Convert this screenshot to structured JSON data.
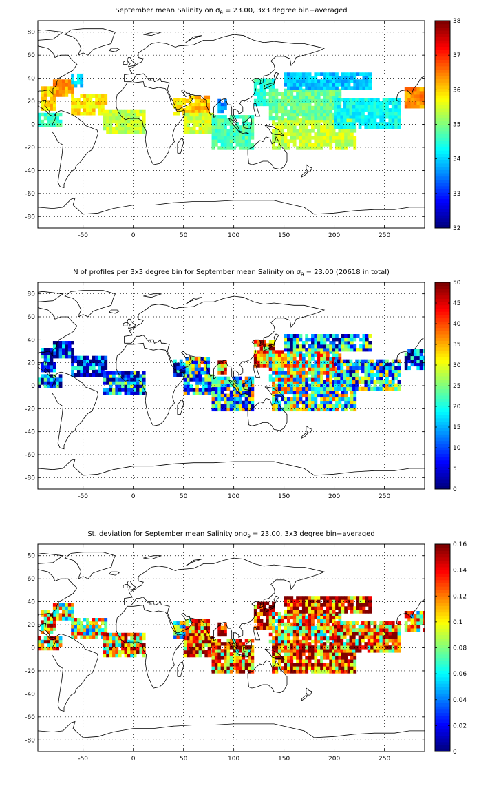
{
  "chart_data": [
    {
      "type": "heatmap",
      "title_parts": [
        "September mean Salinity on σ",
        "θ",
        " = 23.00, 3x3 degree bin−averaged"
      ],
      "xlabel": "",
      "ylabel": "",
      "xlim": [
        -95,
        290
      ],
      "ylim": [
        -90,
        90
      ],
      "xticks": [
        "-50",
        "0",
        "50",
        "100",
        "150",
        "200",
        "250"
      ],
      "yticks": [
        "80",
        "60",
        "40",
        "20",
        "0",
        "-20",
        "-40",
        "-60",
        "-80"
      ],
      "grid": "dotted",
      "colorbar": {
        "min": 32,
        "max": 38,
        "ticks": [
          "38",
          "37",
          "36",
          "35",
          "34",
          "33",
          "32"
        ]
      },
      "regions": [
        {
          "lon": [
            -95,
            -72
          ],
          "lat": [
            -2,
            10
          ],
          "value": 34.6
        },
        {
          "lon": [
            -92,
            -78
          ],
          "lat": [
            12,
            32
          ],
          "value": 36.0
        },
        {
          "lon": [
            -80,
            -60
          ],
          "lat": [
            24,
            38
          ],
          "value": 36.3
        },
        {
          "lon": [
            -62,
            -28
          ],
          "lat": [
            8,
            24
          ],
          "value": 35.9
        },
        {
          "lon": [
            -62,
            -50
          ],
          "lat": [
            32,
            44
          ],
          "value": 34.0
        },
        {
          "lon": [
            -30,
            10
          ],
          "lat": [
            -8,
            12
          ],
          "value": 35.4
        },
        {
          "lon": [
            40,
            52
          ],
          "lat": [
            8,
            22
          ],
          "value": 35.8
        },
        {
          "lon": [
            52,
            76
          ],
          "lat": [
            10,
            24
          ],
          "value": 36.1
        },
        {
          "lon": [
            50,
            78
          ],
          "lat": [
            -8,
            8
          ],
          "value": 35.5
        },
        {
          "lon": [
            78,
            120
          ],
          "lat": [
            -22,
            8
          ],
          "value": 34.7
        },
        {
          "lon": [
            84,
            92
          ],
          "lat": [
            10,
            20
          ],
          "value": 33.6
        },
        {
          "lon": [
            120,
            140
          ],
          "lat": [
            16,
            40
          ],
          "value": 34.5
        },
        {
          "lon": [
            138,
            220
          ],
          "lat": [
            -22,
            4
          ],
          "value": 35.4
        },
        {
          "lon": [
            135,
            205
          ],
          "lat": [
            4,
            30
          ],
          "value": 34.9
        },
        {
          "lon": [
            150,
            235
          ],
          "lat": [
            30,
            44
          ],
          "value": 33.9
        },
        {
          "lon": [
            200,
            265
          ],
          "lat": [
            -4,
            22
          ],
          "value": 34.3
        },
        {
          "lon": [
            270,
            290
          ],
          "lat": [
            14,
            32
          ],
          "value": 36.4
        }
      ]
    },
    {
      "type": "heatmap",
      "title_parts": [
        "N of profiles per 3x3 degree bin for September mean Salinity on σ",
        "θ",
        " = 23.00 (20618 in total)"
      ],
      "xlabel": "",
      "ylabel": "",
      "xlim": [
        -95,
        290
      ],
      "ylim": [
        -90,
        90
      ],
      "xticks": [
        "-50",
        "0",
        "50",
        "100",
        "150",
        "200",
        "250"
      ],
      "yticks": [
        "80",
        "60",
        "40",
        "20",
        "0",
        "-20",
        "-40",
        "-60",
        "-80"
      ],
      "grid": "dotted",
      "colorbar": {
        "min": 0,
        "max": 50,
        "ticks": [
          "50",
          "45",
          "40",
          "35",
          "30",
          "25",
          "20",
          "15",
          "10",
          "5",
          "0"
        ]
      },
      "regions": [
        {
          "lon": [
            -95,
            -72
          ],
          "lat": [
            -2,
            10
          ],
          "value": 8
        },
        {
          "lon": [
            -92,
            -78
          ],
          "lat": [
            12,
            32
          ],
          "value": 6
        },
        {
          "lon": [
            -80,
            -60
          ],
          "lat": [
            24,
            38
          ],
          "value": 5
        },
        {
          "lon": [
            -62,
            -28
          ],
          "lat": [
            8,
            24
          ],
          "value": 4
        },
        {
          "lon": [
            -30,
            10
          ],
          "lat": [
            -8,
            12
          ],
          "value": 12
        },
        {
          "lon": [
            40,
            52
          ],
          "lat": [
            8,
            22
          ],
          "value": 10
        },
        {
          "lon": [
            52,
            76
          ],
          "lat": [
            10,
            24
          ],
          "value": 22
        },
        {
          "lon": [
            50,
            78
          ],
          "lat": [
            -8,
            8
          ],
          "value": 18
        },
        {
          "lon": [
            78,
            120
          ],
          "lat": [
            -22,
            8
          ],
          "value": 20
        },
        {
          "lon": [
            84,
            92
          ],
          "lat": [
            10,
            20
          ],
          "value": 42
        },
        {
          "lon": [
            120,
            140
          ],
          "lat": [
            16,
            40
          ],
          "value": 38
        },
        {
          "lon": [
            138,
            220
          ],
          "lat": [
            -22,
            4
          ],
          "value": 22
        },
        {
          "lon": [
            135,
            205
          ],
          "lat": [
            4,
            30
          ],
          "value": 28
        },
        {
          "lon": [
            150,
            235
          ],
          "lat": [
            30,
            44
          ],
          "value": 14
        },
        {
          "lon": [
            200,
            265
          ],
          "lat": [
            -4,
            22
          ],
          "value": 18
        },
        {
          "lon": [
            270,
            290
          ],
          "lat": [
            14,
            32
          ],
          "value": 6
        }
      ]
    },
    {
      "type": "heatmap",
      "title_parts": [
        "St. deviation for September mean Salinity onσ",
        "θ",
        " = 23.00, 3x3 degree bin−averaged"
      ],
      "xlabel": "",
      "ylabel": "",
      "xlim": [
        -95,
        290
      ],
      "ylim": [
        -90,
        90
      ],
      "xticks": [
        "-50",
        "0",
        "50",
        "100",
        "150",
        "200",
        "250"
      ],
      "yticks": [
        "80",
        "60",
        "40",
        "20",
        "0",
        "-20",
        "-40",
        "-60",
        "-80"
      ],
      "grid": "dotted",
      "colorbar": {
        "min": 0,
        "max": 0.16,
        "ticks": [
          "0.16",
          "0.14",
          "0.12",
          "0.1",
          "0.08",
          "0.06",
          "0.04",
          "0.02",
          "0"
        ]
      },
      "regions": [
        {
          "lon": [
            -95,
            -72
          ],
          "lat": [
            -2,
            10
          ],
          "value": 0.1
        },
        {
          "lon": [
            -92,
            -78
          ],
          "lat": [
            12,
            32
          ],
          "value": 0.12
        },
        {
          "lon": [
            -80,
            -60
          ],
          "lat": [
            24,
            38
          ],
          "value": 0.1
        },
        {
          "lon": [
            -62,
            -28
          ],
          "lat": [
            8,
            24
          ],
          "value": 0.09
        },
        {
          "lon": [
            -30,
            10
          ],
          "lat": [
            -8,
            12
          ],
          "value": 0.11
        },
        {
          "lon": [
            40,
            52
          ],
          "lat": [
            8,
            22
          ],
          "value": 0.08
        },
        {
          "lon": [
            52,
            76
          ],
          "lat": [
            10,
            24
          ],
          "value": 0.12
        },
        {
          "lon": [
            50,
            78
          ],
          "lat": [
            -8,
            8
          ],
          "value": 0.13
        },
        {
          "lon": [
            78,
            120
          ],
          "lat": [
            -22,
            8
          ],
          "value": 0.12
        },
        {
          "lon": [
            84,
            92
          ],
          "lat": [
            10,
            20
          ],
          "value": 0.15
        },
        {
          "lon": [
            120,
            140
          ],
          "lat": [
            16,
            40
          ],
          "value": 0.15
        },
        {
          "lon": [
            138,
            220
          ],
          "lat": [
            -22,
            4
          ],
          "value": 0.13
        },
        {
          "lon": [
            135,
            205
          ],
          "lat": [
            4,
            30
          ],
          "value": 0.11
        },
        {
          "lon": [
            150,
            235
          ],
          "lat": [
            30,
            44
          ],
          "value": 0.14
        },
        {
          "lon": [
            200,
            265
          ],
          "lat": [
            -4,
            22
          ],
          "value": 0.12
        },
        {
          "lon": [
            270,
            290
          ],
          "lat": [
            14,
            32
          ],
          "value": 0.1
        }
      ]
    }
  ]
}
